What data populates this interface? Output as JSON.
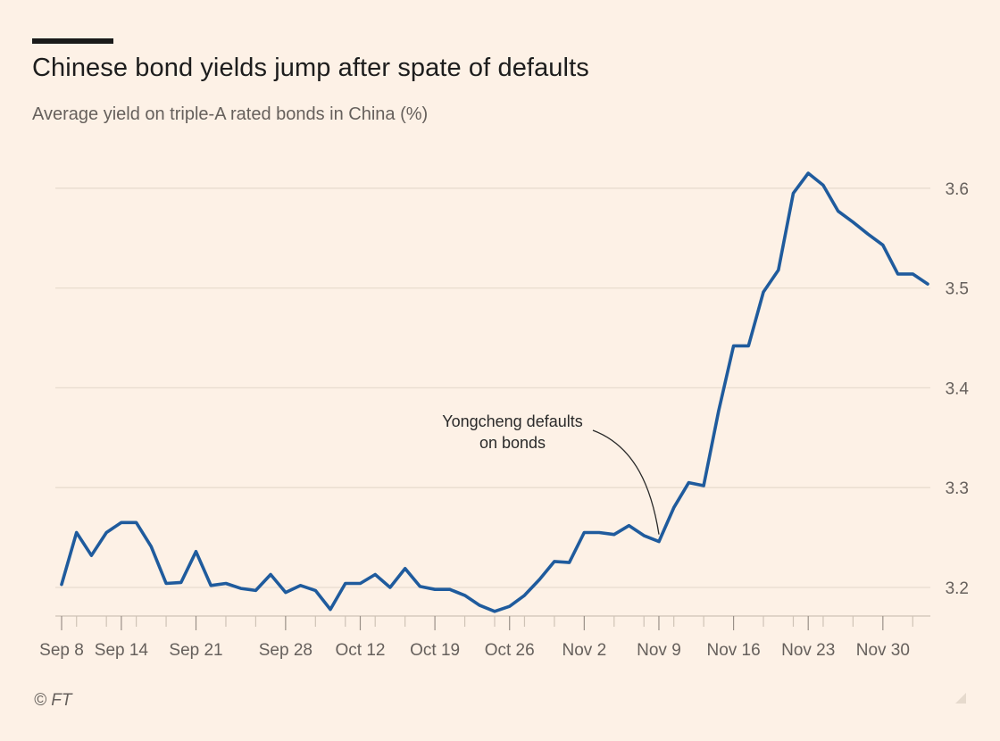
{
  "header": {
    "title": "Chinese bond yields jump after spate of defaults",
    "subtitle": "Average yield on triple-A rated bonds in China (%)"
  },
  "footer": {
    "source": "© FT"
  },
  "colors": {
    "background": "#fdf1e6",
    "line": "#1f5b9d",
    "grid": "#e8dccf",
    "text": "#66605c"
  },
  "chart_data": {
    "type": "line",
    "title": "Chinese bond yields jump after spate of defaults",
    "subtitle": "Average yield on triple-A rated bonds in China (%)",
    "xlabel": "",
    "ylabel": "",
    "ylim": [
      3.17,
      3.64
    ],
    "yticks": [
      3.2,
      3.3,
      3.4,
      3.5,
      3.6
    ],
    "ytick_labels": [
      "3.2",
      "3.3",
      "3.4",
      "3.5",
      "3.6"
    ],
    "y_axis_side": "right",
    "grid": true,
    "n_points": 59,
    "xtick_labels": [
      {
        "index": 0,
        "label": "Sep 8"
      },
      {
        "index": 4,
        "label": "Sep 14"
      },
      {
        "index": 9,
        "label": "Sep 21"
      },
      {
        "index": 15,
        "label": "Sep 28"
      },
      {
        "index": 20,
        "label": "Oct 12"
      },
      {
        "index": 25,
        "label": "Oct 19"
      },
      {
        "index": 30,
        "label": "Oct 26"
      },
      {
        "index": 35,
        "label": "Nov 2"
      },
      {
        "index": 40,
        "label": "Nov 9"
      },
      {
        "index": 45,
        "label": "Nov 16"
      },
      {
        "index": 50,
        "label": "Nov 23"
      },
      {
        "index": 55,
        "label": "Nov 30"
      }
    ],
    "series": [
      {
        "name": "Average yield on triple-A rated bonds",
        "values": [
          3.203,
          3.255,
          3.232,
          3.255,
          3.265,
          3.265,
          3.241,
          3.204,
          3.205,
          3.236,
          3.202,
          3.204,
          3.199,
          3.197,
          3.213,
          3.195,
          3.202,
          3.197,
          3.178,
          3.204,
          3.204,
          3.213,
          3.2,
          3.219,
          3.201,
          3.198,
          3.198,
          3.192,
          3.182,
          3.176,
          3.181,
          3.192,
          3.208,
          3.226,
          3.225,
          3.255,
          3.255,
          3.253,
          3.262,
          3.252,
          3.246,
          3.28,
          3.305,
          3.302,
          3.377,
          3.442,
          3.442,
          3.496,
          3.518,
          3.595,
          3.615,
          3.603,
          3.577,
          3.566,
          3.554,
          3.543,
          3.514,
          3.514,
          3.504
        ]
      }
    ],
    "annotations": [
      {
        "text_lines": [
          "Yongcheng defaults",
          "on bonds"
        ],
        "points_to_index": 40
      }
    ]
  }
}
